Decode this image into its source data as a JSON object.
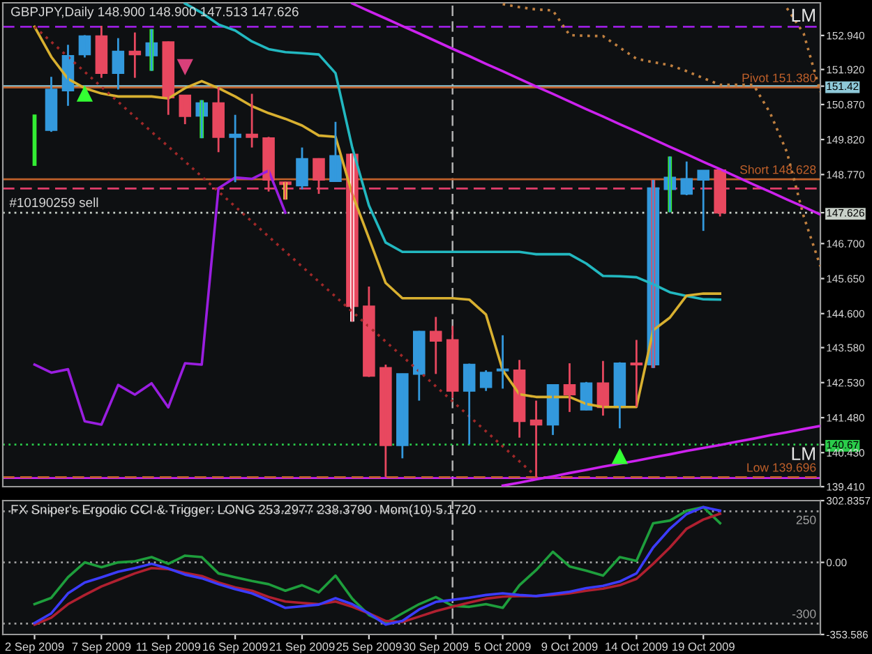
{
  "chart_data": [
    {
      "type": "candlestick",
      "title": "GBPJPY,Daily 148.900 148.900 147.513 147.626",
      "categories": [
        null,
        null,
        null,
        null,
        null,
        null,
        null,
        null,
        null,
        null,
        null,
        null,
        null,
        null,
        null,
        null,
        null,
        null,
        null,
        null,
        null,
        null,
        null,
        null,
        null,
        null,
        null,
        null,
        null,
        null,
        null,
        null,
        null,
        null,
        null,
        null,
        null,
        null,
        null,
        null,
        null,
        null,
        null,
        null,
        null,
        null,
        null,
        null
      ],
      "ohlc": [
        null,
        [
          150.1,
          151.7,
          150.05,
          151.32
        ],
        [
          151.29,
          152.66,
          150.83,
          152.33
        ],
        [
          152.37,
          152.95,
          152.28,
          152.92
        ],
        [
          152.92,
          153.23,
          151.67,
          151.81
        ],
        [
          151.81,
          152.86,
          151.32,
          152.46
        ],
        [
          152.46,
          153.03,
          151.67,
          152.37
        ],
        [
          152.34,
          153.13,
          151.88,
          152.71
        ],
        [
          152.74,
          152.76,
          150.56,
          151.08
        ],
        [
          151.14,
          151.16,
          150.28,
          150.52
        ],
        [
          150.53,
          151.0,
          149.86,
          150.91
        ],
        [
          150.91,
          151.39,
          149.44,
          149.89
        ],
        [
          149.89,
          150.56,
          148.54,
          149.97
        ],
        [
          149.97,
          151.19,
          149.58,
          149.89
        ],
        [
          149.86,
          149.9,
          148.26,
          148.61
        ],
        [
          148.54,
          148.56,
          148.02,
          148.48
        ],
        [
          148.44,
          149.58,
          148.33,
          149.24
        ],
        [
          149.24,
          149.26,
          148.19,
          148.61
        ],
        [
          148.57,
          150.35,
          148.55,
          149.33
        ],
        [
          149.37,
          149.4,
          144.36,
          144.82
        ],
        [
          144.82,
          145.41,
          142.7,
          142.73
        ],
        [
          142.97,
          143.07,
          139.7,
          140.65
        ],
        [
          140.65,
          142.8,
          140.26,
          142.79
        ],
        [
          142.79,
          144.08,
          141.99,
          144.06
        ],
        [
          144.06,
          144.5,
          142.79,
          143.78
        ],
        [
          143.81,
          144.23,
          142.07,
          142.28
        ],
        [
          142.28,
          143.1,
          140.68,
          143.07
        ],
        [
          142.39,
          142.9,
          142.28,
          142.83
        ],
        [
          142.89,
          143.95,
          142.35,
          142.93
        ],
        [
          142.9,
          143.21,
          140.88,
          141.37
        ],
        [
          141.4,
          141.99,
          139.7,
          141.27
        ],
        [
          141.27,
          142.48,
          140.96,
          142.46
        ],
        [
          142.46,
          143.11,
          141.65,
          142.17
        ],
        [
          141.72,
          142.55,
          141.7,
          142.51
        ],
        [
          142.51,
          143.18,
          141.54,
          141.79
        ],
        [
          141.79,
          143.14,
          141.16,
          143.11
        ],
        [
          143.11,
          143.81,
          141.8,
          143.07
        ],
        [
          143.07,
          148.61,
          142.97,
          148.36
        ],
        [
          148.33,
          149.31,
          147.64,
          148.68
        ],
        [
          148.19,
          149.16,
          148.15,
          148.64
        ],
        [
          148.61,
          148.9,
          147.08,
          148.89
        ],
        [
          148.9,
          148.9,
          147.513,
          147.626
        ],
        null,
        null,
        null,
        null,
        null,
        null
      ],
      "colors": [
        null,
        "#3399dd",
        "#3399dd",
        "#3399dd",
        "#e8485f",
        "#3399dd",
        "#e8485f",
        "#3399dd",
        "#e8485f",
        "#e8485f",
        "#3399dd",
        "#e8485f",
        "#3399dd",
        "#e8485f",
        "#e8485f",
        "#e8485f",
        "#3399dd",
        "#e8485f",
        "#3399dd",
        "#e8485f",
        "#e8485f",
        "#e8485f",
        "#3399dd",
        "#3399dd",
        "#e8485f",
        "#e8485f",
        "#3399dd",
        "#3399dd",
        "#3399dd",
        "#e8485f",
        "#e8485f",
        "#3399dd",
        "#e8485f",
        "#3399dd",
        "#e8485f",
        "#3399dd",
        "#e8485f",
        "#3399dd",
        "#3399dd",
        "#3399dd",
        "#3399dd",
        "#e8485f",
        null,
        null,
        null,
        null,
        null,
        null
      ],
      "series": [
        {
          "type": "bar",
          "base": [
            149.03,
            null,
            null,
            null,
            null,
            null,
            null,
            151.88,
            null,
            null,
            149.86,
            null,
            null,
            null,
            null,
            148.02,
            null,
            null,
            null,
            144.36,
            null,
            null,
            null,
            null,
            null,
            null,
            null,
            null,
            null,
            null,
            null,
            null,
            null,
            null,
            null,
            null,
            null,
            142.97,
            147.64,
            null,
            null,
            null,
            null,
            null,
            null,
            null,
            null,
            null
          ],
          "values": [
            1.54,
            null,
            null,
            null,
            null,
            null,
            null,
            1.25,
            null,
            null,
            1.14,
            null,
            null,
            null,
            null,
            0.52,
            null,
            null,
            null,
            5.04,
            null,
            null,
            null,
            null,
            null,
            null,
            null,
            null,
            null,
            null,
            null,
            null,
            null,
            null,
            null,
            null,
            null,
            5.64,
            1.67,
            null,
            null,
            null,
            null,
            null,
            null,
            null,
            null,
            null
          ],
          "colors": [
            "#33ee33",
            null,
            null,
            null,
            null,
            null,
            null,
            "#33ee33",
            null,
            null,
            "#33ee33",
            null,
            null,
            null,
            null,
            "#f0e040",
            null,
            null,
            null,
            "#ffffff",
            null,
            null,
            null,
            null,
            null,
            null,
            null,
            null,
            null,
            null,
            null,
            null,
            null,
            null,
            null,
            null,
            null,
            "#e8485f",
            "#33ee33",
            null,
            null,
            null,
            null,
            null,
            null,
            null,
            null,
            null
          ]
        },
        {
          "type": "line",
          "color": "#22b8c0",
          "line_style": "solid",
          "values": [
            null,
            null,
            null,
            null,
            null,
            null,
            null,
            null,
            null,
            153.9,
            153.62,
            153.27,
            153.09,
            152.76,
            152.53,
            152.44,
            152.41,
            152.37,
            151.81,
            149.58,
            147.84,
            146.73,
            146.45,
            146.45,
            146.45,
            146.45,
            146.45,
            146.45,
            146.45,
            146.45,
            146.38,
            146.38,
            146.38,
            146.1,
            145.73,
            145.72,
            145.69,
            145.48,
            145.24,
            145.13,
            145.03,
            145.02,
            null,
            null,
            null,
            null,
            null,
            null
          ]
        },
        {
          "type": "line",
          "color": "#d8b030",
          "line_style": "solid",
          "values": [
            153.2,
            152.3,
            151.64,
            151.36,
            151.2,
            151.11,
            151.11,
            151.11,
            151.05,
            151.36,
            151.57,
            151.36,
            151.11,
            150.82,
            150.61,
            150.44,
            150.24,
            149.94,
            149.9,
            148.19,
            146.86,
            145.52,
            145.06,
            145.06,
            145.06,
            145.06,
            145.02,
            144.57,
            142.9,
            142.18,
            142.1,
            142.1,
            142.1,
            141.89,
            141.8,
            141.8,
            141.8,
            144.1,
            144.48,
            145.14,
            145.2,
            145.2,
            null,
            null,
            null,
            null,
            null,
            null
          ]
        },
        {
          "type": "line",
          "color": "#9a1ee0",
          "line_style": "solid",
          "values": [
            143.07,
            142.83,
            142.93,
            141.37,
            141.27,
            142.46,
            142.17,
            142.51,
            141.79,
            143.11,
            143.07,
            148.36,
            148.68,
            148.64,
            148.89,
            147.626,
            null,
            null,
            null,
            null,
            null,
            null,
            null,
            null,
            null,
            null,
            null,
            null,
            null,
            null,
            null,
            null,
            null,
            null,
            null,
            null,
            null,
            null,
            null,
            null,
            null,
            null,
            null,
            null,
            null,
            null,
            null,
            null
          ]
        },
        {
          "type": "line",
          "color": "#a02828",
          "line_style": "dotted",
          "values": [
            153.2,
            152.75,
            152.3,
            151.85,
            151.4,
            150.95,
            150.5,
            150.05,
            149.61,
            149.16,
            148.71,
            148.26,
            147.81,
            147.36,
            146.91,
            146.46,
            146.01,
            145.56,
            145.11,
            144.66,
            144.21,
            143.76,
            143.32,
            142.87,
            142.42,
            141.97,
            141.52,
            141.07,
            140.62,
            140.17,
            139.72,
            null,
            null,
            null,
            null,
            null,
            null,
            null,
            null,
            null,
            null,
            null,
            null,
            null,
            null,
            null,
            null,
            null
          ]
        },
        {
          "type": "line",
          "color": "#cc22ee",
          "line_style": "solid",
          "values": [
            null,
            null,
            null,
            null,
            null,
            null,
            null,
            null,
            null,
            null,
            null,
            null,
            null,
            null,
            null,
            null,
            null,
            null,
            null,
            153.9,
            153.67,
            153.45,
            153.22,
            153.0,
            152.77,
            152.54,
            152.32,
            152.09,
            151.87,
            151.64,
            151.41,
            151.19,
            150.96,
            150.73,
            150.51,
            150.28,
            150.06,
            149.83,
            149.6,
            149.38,
            149.15,
            148.93,
            148.7,
            148.47,
            148.25,
            148.02,
            147.8,
            147.57
          ]
        },
        {
          "type": "line",
          "color": "#cc22ee",
          "line_style": "solid",
          "values": [
            null,
            null,
            null,
            null,
            null,
            null,
            null,
            null,
            null,
            null,
            null,
            null,
            null,
            null,
            null,
            null,
            null,
            null,
            null,
            null,
            null,
            null,
            null,
            null,
            null,
            null,
            null,
            null,
            139.44,
            139.53,
            139.63,
            139.72,
            139.82,
            139.91,
            140.01,
            140.1,
            140.19,
            140.29,
            140.38,
            140.48,
            140.57,
            140.66,
            140.76,
            140.85,
            140.95,
            141.04,
            141.14,
            141.23
          ]
        },
        {
          "type": "line",
          "color": "#c08040",
          "line_style": "dotted",
          "values": [
            null,
            null,
            null,
            null,
            null,
            null,
            null,
            null,
            null,
            null,
            null,
            null,
            null,
            null,
            null,
            null,
            null,
            null,
            null,
            null,
            null,
            null,
            null,
            null,
            null,
            null,
            null,
            null,
            153.88,
            153.79,
            153.72,
            153.69,
            152.95,
            152.93,
            152.92,
            152.58,
            152.24,
            152.14,
            152.05,
            151.87,
            151.66,
            151.46,
            151.46,
            151.46,
            150.61,
            149.44,
            147.52,
            146.02
          ]
        },
        {
          "type": "line",
          "color": "#c08040",
          "line_style": "dotted",
          "values": [
            null,
            null,
            null,
            null,
            null,
            null,
            null,
            null,
            null,
            null,
            null,
            null,
            null,
            null,
            null,
            null,
            null,
            null,
            null,
            null,
            null,
            null,
            null,
            null,
            null,
            null,
            null,
            null,
            null,
            null,
            null,
            null,
            null,
            null,
            null,
            null,
            null,
            null,
            null,
            null,
            null,
            null,
            null,
            null,
            null,
            153.76,
            153.0,
            151.25
          ]
        },
        {
          "type": "scatter",
          "color": "#33ff33",
          "marker": "triangle",
          "values": [
            null,
            null,
            null,
            151.2,
            null,
            null,
            null,
            null,
            null,
            null,
            null,
            null,
            null,
            null,
            null,
            null,
            null,
            null,
            null,
            null,
            null,
            null,
            null,
            null,
            null,
            null,
            null,
            null,
            null,
            null,
            null,
            null,
            null,
            null,
            null,
            140.33,
            null,
            null,
            null,
            null,
            null,
            null,
            null,
            null,
            null,
            null,
            null,
            null
          ]
        },
        {
          "type": "scatter",
          "color": "#d8407a",
          "marker": "triangle",
          "values": [
            null,
            null,
            null,
            null,
            null,
            null,
            null,
            null,
            null,
            151.99,
            null,
            null,
            null,
            null,
            null,
            null,
            null,
            null,
            null,
            null,
            null,
            null,
            null,
            null,
            null,
            null,
            null,
            null,
            null,
            null,
            null,
            null,
            null,
            null,
            null,
            null,
            null,
            null,
            null,
            null,
            null,
            null,
            null,
            null,
            null,
            null,
            null,
            null
          ]
        }
      ],
      "ylim": [
        139.41,
        153.92
      ],
      "yticks": [
        {
          "value": 152.94,
          "label": "152.940"
        },
        {
          "value": 151.92,
          "label": "151.920"
        },
        151.42,
        {
          "value": 150.87,
          "label": "150.870"
        },
        {
          "value": 149.82,
          "label": "149.820"
        },
        {
          "value": 148.77,
          "label": "148.770"
        },
        147.626,
        {
          "value": 146.7,
          "label": "146.700"
        },
        {
          "value": 145.65,
          "label": "145.650"
        },
        {
          "value": 144.6,
          "label": "144.600"
        },
        {
          "value": 143.58,
          "label": "143.580"
        },
        {
          "value": 142.53,
          "label": "142.530"
        },
        {
          "value": 141.48,
          "label": "141.480"
        },
        140.67,
        {
          "value": 140.43,
          "label": "140.430"
        },
        {
          "value": 139.41,
          "label": "139.410"
        }
      ],
      "tick_labels": "y",
      "ref_lines": [
        {
          "axis": "y",
          "value": 153.2,
          "color": "#9a1ee0",
          "line_style": "dashed"
        },
        {
          "axis": "y",
          "value": 151.42,
          "color": "#8ec8d8"
        },
        {
          "axis": "y",
          "value": 151.38,
          "label": "Pivot 151.380",
          "color": "#c0602a"
        },
        {
          "axis": "y",
          "value": 148.628,
          "label": "Short 148.628",
          "color": "#c0602a"
        },
        {
          "axis": "y",
          "value": 148.35,
          "color": "#e03c6a",
          "line_style": "dashed"
        },
        {
          "axis": "y",
          "value": 147.626,
          "color": "#c8d0c8",
          "line_style": "dotted"
        },
        {
          "axis": "y",
          "value": 140.67,
          "color": "#2acc4a",
          "line_style": "dotted"
        },
        {
          "axis": "y",
          "value": 139.67,
          "color": "#cc22ee"
        },
        {
          "axis": "y",
          "value": 139.696,
          "label": "Low 139.696",
          "color": "#c0602a",
          "line_style": "dashed"
        }
      ],
      "annotations": [
        "LM",
        "LM",
        {
          "text": "#10190259 sell",
          "y": 147.626
        }
      ]
    },
    {
      "type": "line",
      "title": "FX Sniper's Ergodic CCI & Trigger: LONG 253.2977 238.3790  Mom(10) 5.1720",
      "categories": [
        "2 Sep 2009",
        null,
        null,
        null,
        "7 Sep 2009",
        null,
        null,
        null,
        "11 Sep 2009",
        null,
        null,
        null,
        "16 Sep 2009",
        null,
        null,
        null,
        "21 Sep 2009",
        null,
        null,
        null,
        "25 Sep 2009",
        null,
        null,
        null,
        "30 Sep 2009",
        null,
        null,
        null,
        "5 Oct 2009",
        null,
        null,
        null,
        "9 Oct 2009",
        null,
        null,
        null,
        "14 Oct 2009",
        null,
        null,
        null,
        "19 Oct 2009",
        null,
        null,
        null,
        null,
        null,
        null,
        null
      ],
      "series": [
        {
          "color": "#1e9e3c",
          "values": [
            -205,
            -174,
            -73,
            0,
            -24,
            0,
            5,
            26,
            -7,
            33,
            26,
            -54,
            -73,
            -91,
            -107,
            -139,
            -112,
            -147,
            -65,
            -178,
            -258,
            -297,
            -250,
            -205,
            -170,
            -213,
            -218,
            -205,
            -223,
            -112,
            -38,
            52,
            -20,
            -41,
            -65,
            26,
            7,
            192,
            205,
            253,
            271,
            192,
            null,
            null,
            null,
            null,
            null,
            null
          ]
        },
        {
          "color": "#b02030",
          "values": [
            -305,
            -271,
            -205,
            -160,
            -118,
            -86,
            -54,
            -28,
            -33,
            -52,
            -67,
            -99,
            -123,
            -139,
            -170,
            -192,
            -199,
            -205,
            -192,
            -218,
            -250,
            -287,
            -292,
            -266,
            -239,
            -218,
            -197,
            -178,
            -168,
            -165,
            -165,
            -160,
            -152,
            -139,
            -129,
            -112,
            -81,
            -7,
            73,
            165,
            210,
            238.379,
            null,
            null,
            null,
            null,
            null,
            null
          ]
        },
        {
          "color": "#3c3cff",
          "values": [
            -297,
            -250,
            -152,
            -99,
            -73,
            -46,
            -28,
            -7,
            -30,
            -60,
            -78,
            -107,
            -131,
            -152,
            -186,
            -223,
            -215,
            -207,
            -176,
            -205,
            -250,
            -305,
            -287,
            -231,
            -194,
            -184,
            -173,
            -160,
            -152,
            -160,
            -165,
            -155,
            -144,
            -126,
            -115,
            -94,
            -54,
            73,
            165,
            237,
            271,
            253.2977,
            null,
            null,
            null,
            null,
            null,
            null
          ]
        }
      ],
      "ylim": [
        -353.586,
        302.8357
      ],
      "yticks": [
        302.8357,
        {
          "value": 0,
          "label": "0.00"
        },
        -353.586
      ],
      "ref_lines": [
        {
          "axis": "y",
          "value": 250,
          "label": "250",
          "color": "#a0a0a0",
          "line_style": "dotted"
        },
        {
          "axis": "y",
          "value": 0,
          "color": "#a0a0a0",
          "line_style": "dotted"
        },
        {
          "axis": "y",
          "value": -300,
          "label": "-300",
          "color": "#a0a0a0",
          "line_style": "dotted"
        }
      ]
    }
  ]
}
